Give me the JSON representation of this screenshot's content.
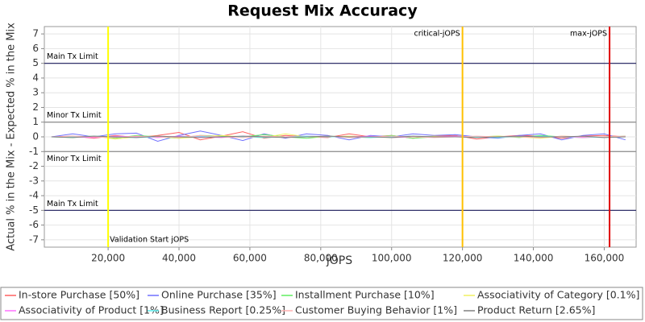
{
  "chart_data": {
    "type": "line",
    "title": "Request Mix Accuracy",
    "xlabel": "jOPS",
    "ylabel": "Actual % in the Mix - Expected % in the Mix",
    "xlim": [
      2000,
      169000
    ],
    "ylim": [
      -7.5,
      7.5
    ],
    "xticks": [
      {
        "value": 20000,
        "label": "20,000"
      },
      {
        "value": 40000,
        "label": "40,000"
      },
      {
        "value": 60000,
        "label": "60,000"
      },
      {
        "value": 80000,
        "label": "80,000"
      },
      {
        "value": 100000,
        "label": "100,000"
      },
      {
        "value": 120000,
        "label": "120,000"
      },
      {
        "value": 140000,
        "label": "140,000"
      },
      {
        "value": 160000,
        "label": "160,000"
      }
    ],
    "yticks": [
      -7,
      -6,
      -5,
      -4,
      -3,
      -2,
      -1,
      0,
      1,
      2,
      3,
      4,
      5,
      6,
      7
    ],
    "grid": true,
    "hlines": [
      {
        "label": "Main Tx Limit",
        "value": 5,
        "color": "#1a1a5a",
        "label_position": "above"
      },
      {
        "label": "Minor Tx Limit",
        "value": 1,
        "color": "#8a8a8a",
        "label_position": "above"
      },
      {
        "label": "Minor Tx Limit",
        "value": -1,
        "color": "#8a8a8a",
        "label_position": "below"
      },
      {
        "label": "Main Tx Limit",
        "value": -5,
        "color": "#1a1a5a",
        "label_position": "above"
      }
    ],
    "vlines": [
      {
        "label": "Validation Start jOPS",
        "value": 20000,
        "color": "#ffff00",
        "label_position": "below"
      },
      {
        "label": "critical-jOPS",
        "value": 120000,
        "color": "#ffc000",
        "label_position": "above"
      },
      {
        "label": "max-jOPS",
        "value": 161500,
        "color": "#e00000",
        "label_position": "above"
      }
    ],
    "x": [
      4000,
      10000,
      16000,
      22000,
      28000,
      34000,
      40000,
      46000,
      52000,
      58000,
      64000,
      70000,
      76000,
      82000,
      88000,
      94000,
      100000,
      106000,
      112000,
      118000,
      124000,
      130000,
      136000,
      142000,
      148000,
      154000,
      160000,
      166000
    ],
    "series": [
      {
        "name": "In-store Purchase [50%]",
        "color": "#ff6060",
        "values": [
          0,
          0.05,
          -0.1,
          0.1,
          -0.05,
          0.1,
          0.3,
          -0.2,
          0.05,
          0.35,
          -0.1,
          0.1,
          0,
          -0.05,
          0.2,
          0,
          0.1,
          -0.1,
          0.05,
          0.1,
          -0.15,
          0,
          0.1,
          0.05,
          -0.1,
          0.05,
          0.1,
          0
        ]
      },
      {
        "name": "Online Purchase [35%]",
        "color": "#7070ff",
        "values": [
          0,
          0.2,
          0,
          0.2,
          0.25,
          -0.3,
          0.1,
          0.4,
          0.1,
          -0.25,
          0.2,
          -0.1,
          0.2,
          0.1,
          -0.2,
          0.1,
          0,
          0.2,
          0.1,
          0.15,
          0,
          -0.1,
          0.1,
          0.2,
          -0.2,
          0.1,
          0.2,
          -0.2
        ]
      },
      {
        "name": "Installment Purchase [10%]",
        "color": "#60ee60",
        "values": [
          0,
          -0.05,
          0.05,
          -0.1,
          0.1,
          0,
          -0.1,
          0.1,
          0.05,
          0,
          0.15,
          0,
          -0.1,
          0.05,
          0,
          -0.05,
          0.1,
          -0.1,
          0,
          0.05,
          0,
          0.05,
          -0.05,
          0.1,
          0,
          -0.05,
          0,
          0.05
        ]
      },
      {
        "name": "Associativity of Category [0.1%]",
        "color": "#f0f060",
        "values": [
          0,
          0,
          0.05,
          -0.15,
          0,
          0.05,
          -0.1,
          0,
          0.1,
          0,
          -0.05,
          0.2,
          0,
          0,
          0.05,
          0,
          -0.05,
          0,
          0.05,
          0,
          0,
          0.05,
          0,
          -0.1,
          0.05,
          0,
          0,
          0
        ]
      },
      {
        "name": "Associativity of Product [1%]",
        "color": "#ff70ff",
        "values": [
          0,
          0,
          -0.05,
          0.05,
          0,
          -0.05,
          0.05,
          0,
          -0.05,
          0.05,
          0,
          0,
          0.05,
          0,
          0,
          0.05,
          -0.05,
          0,
          0,
          0.05,
          0,
          0,
          0.05,
          0,
          0,
          -0.05,
          0,
          0
        ]
      },
      {
        "name": "Business Report [0.25%]",
        "color": "#60eeee",
        "values": [
          0,
          0,
          0.05,
          0,
          -0.05,
          0,
          0,
          0.05,
          0,
          0,
          -0.05,
          0,
          0.05,
          0,
          0,
          -0.05,
          0,
          0.05,
          0,
          0,
          0,
          -0.05,
          0,
          0.05,
          0,
          0,
          -0.05,
          0
        ]
      },
      {
        "name": "Customer Buying Behavior [1%]",
        "color": "#ffb0b0",
        "values": [
          0,
          0.05,
          0,
          -0.05,
          0.05,
          0,
          -0.05,
          0.1,
          0,
          -0.05,
          0.05,
          0,
          0,
          0.05,
          -0.05,
          0,
          0.05,
          0,
          -0.05,
          0,
          0.05,
          0,
          0,
          -0.05,
          0.05,
          0,
          0,
          0.05
        ]
      },
      {
        "name": "Product Return [2.65%]",
        "color": "#808080",
        "values": [
          0,
          -0.05,
          0.05,
          0,
          -0.05,
          0.05,
          0,
          -0.05,
          0,
          0.05,
          0,
          -0.05,
          0,
          0.05,
          0,
          0,
          -0.05,
          0.05,
          0,
          0,
          -0.05,
          0,
          0.05,
          0,
          0,
          0.05,
          -0.05,
          0
        ]
      }
    ]
  }
}
